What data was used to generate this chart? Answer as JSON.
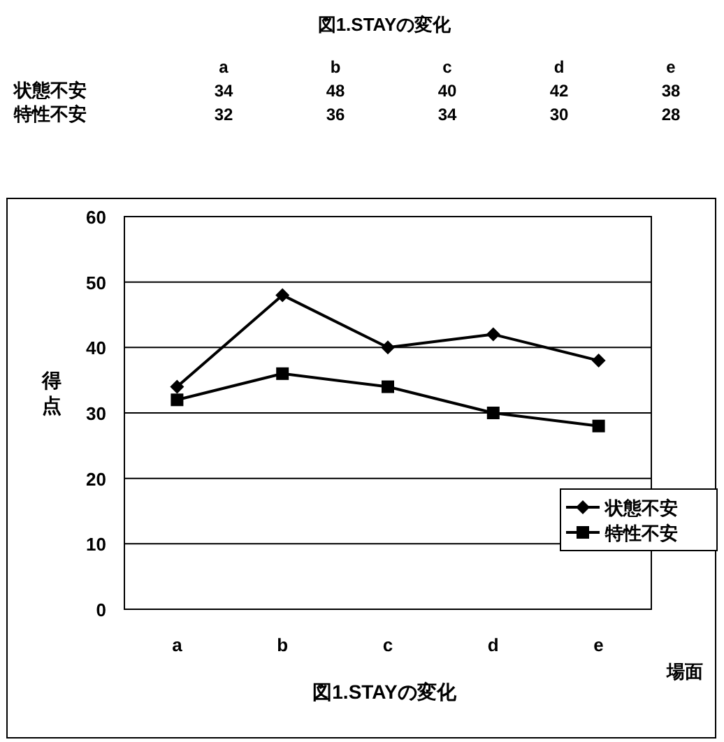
{
  "chart_data": [
    {
      "type": "other",
      "title": "図1.STAYの変化",
      "categories": [
        "a",
        "b",
        "c",
        "d",
        "e"
      ],
      "data_labels": true,
      "series": [
        {
          "name": "状態不安",
          "values": [
            34,
            48,
            40,
            42,
            38
          ]
        },
        {
          "name": "特性不安",
          "values": [
            32,
            36,
            34,
            30,
            28
          ]
        }
      ]
    },
    {
      "type": "line",
      "xlabel": "場面",
      "ylabel": "得点",
      "annotations": [
        "図1.STAYの変化"
      ],
      "categories": [
        "a",
        "b",
        "c",
        "d",
        "e"
      ],
      "series": [
        {
          "name": "状態不安",
          "color": "#000000",
          "marker": "diamond",
          "values": [
            34,
            48,
            40,
            42,
            38
          ]
        },
        {
          "name": "特性不安",
          "color": "#000000",
          "marker": "square",
          "values": [
            32,
            36,
            34,
            30,
            28
          ]
        }
      ],
      "ylim": [
        0,
        60
      ],
      "yticks": [
        0,
        10,
        20,
        30,
        40,
        50,
        60
      ],
      "grid": "y",
      "legend": "right",
      "line_style": "solid"
    }
  ]
}
